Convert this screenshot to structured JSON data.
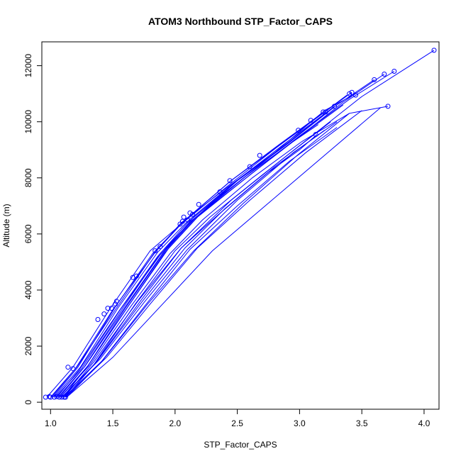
{
  "chart_data": {
    "type": "line",
    "title": "ATOM3 Northbound STP_Factor_CAPS",
    "xlabel": "STP_Factor_CAPS",
    "ylabel": "Altitude (m)",
    "xlim": [
      0.93,
      4.12
    ],
    "ylim": [
      -250,
      12850
    ],
    "xticks": [
      1.0,
      1.5,
      2.0,
      2.5,
      3.0,
      3.5,
      4.0
    ],
    "xtick_labels": [
      "1.0",
      "1.5",
      "2.0",
      "2.5",
      "3.0",
      "3.5",
      "4.0"
    ],
    "yticks": [
      0,
      2000,
      4000,
      6000,
      8000,
      10000,
      12000
    ],
    "ytick_labels": [
      "0",
      "2000",
      "4000",
      "6000",
      "8000",
      "10000",
      "12000"
    ],
    "grid": false,
    "color": "#0000ff",
    "series": [
      {
        "x": [
          1.0,
          1.2,
          1.5,
          1.85,
          2.05,
          2.4,
          2.8,
          3.2,
          3.45
        ],
        "y": [
          180,
          1200,
          3300,
          5400,
          6400,
          7600,
          8900,
          10400,
          11000
        ]
      },
      {
        "x": [
          1.02,
          1.22,
          1.52,
          1.82,
          2.08,
          2.45,
          2.85,
          3.25,
          3.42
        ],
        "y": [
          180,
          1250,
          3400,
          5300,
          6500,
          7900,
          9200,
          10500,
          11050
        ]
      },
      {
        "x": [
          0.97,
          1.18,
          1.48,
          1.8,
          2.05,
          2.42,
          2.82,
          3.2,
          3.38
        ],
        "y": [
          180,
          1250,
          3350,
          5400,
          6350,
          7700,
          9100,
          10350,
          10950
        ]
      },
      {
        "x": [
          1.05,
          1.23,
          1.55,
          1.86,
          2.1,
          2.5,
          2.9,
          3.3,
          3.6
        ],
        "y": [
          180,
          1150,
          3250,
          5200,
          6400,
          7900,
          9200,
          10600,
          11500
        ]
      },
      {
        "x": [
          1.07,
          1.28,
          1.6,
          1.9,
          2.15,
          2.55,
          2.95,
          3.35,
          3.68
        ],
        "y": [
          180,
          1300,
          3400,
          5300,
          6600,
          8000,
          9300,
          10700,
          11700
        ]
      },
      {
        "x": [
          1.1,
          1.3,
          1.62,
          1.92,
          2.18,
          2.6,
          3.0,
          3.4,
          3.76
        ],
        "y": [
          180,
          1300,
          3400,
          5350,
          6600,
          8100,
          9500,
          10800,
          11800
        ]
      },
      {
        "x": [
          1.12,
          1.35,
          1.68,
          2.0,
          2.28,
          2.7,
          3.1,
          3.5,
          4.08
        ],
        "y": [
          180,
          1350,
          3500,
          5400,
          6600,
          8100,
          9500,
          10900,
          12550
        ]
      },
      {
        "x": [
          1.08,
          1.32,
          1.65,
          1.96,
          2.22,
          2.62,
          3.02,
          3.4,
          3.71
        ],
        "y": [
          180,
          1350,
          3450,
          5300,
          6500,
          8000,
          9300,
          10300,
          10550
        ]
      },
      {
        "x": [
          1.1,
          1.36,
          1.72,
          2.05,
          2.35,
          2.75,
          3.0,
          3.14
        ],
        "y": [
          180,
          1400,
          3600,
          5500,
          6700,
          8200,
          9000,
          9550
        ]
      },
      {
        "x": [
          1.04,
          1.25,
          1.56,
          1.88,
          2.12,
          2.5,
          2.87,
          3.22
        ],
        "y": [
          180,
          1200,
          3300,
          5250,
          6400,
          7900,
          9100,
          10350
        ]
      },
      {
        "x": [
          1.06,
          1.27,
          1.58,
          1.88,
          2.14,
          2.55,
          2.92,
          3.28
        ],
        "y": [
          180,
          1250,
          3350,
          5300,
          6500,
          8000,
          9300,
          10550
        ]
      },
      {
        "x": [
          1.12,
          1.45,
          1.8,
          2.18,
          2.6,
          3.05,
          3.5
        ],
        "y": [
          180,
          1600,
          3500,
          5500,
          7200,
          8900,
          10400
        ]
      },
      {
        "x": [
          1.13,
          1.5,
          1.9,
          2.3,
          2.75,
          3.2,
          3.65
        ],
        "y": [
          180,
          1600,
          3500,
          5400,
          7100,
          8800,
          10500
        ]
      },
      {
        "x": [
          1.11,
          1.42,
          1.78,
          2.15,
          2.55,
          2.98,
          3.4
        ],
        "y": [
          180,
          1500,
          3500,
          5400,
          7100,
          8800,
          10300
        ]
      },
      {
        "x": [
          1.09,
          1.4,
          1.75,
          2.1,
          2.5,
          2.95,
          3.3
        ],
        "y": [
          180,
          1550,
          3550,
          5450,
          7200,
          8900,
          10000
        ]
      },
      {
        "x": [
          1.11,
          1.35,
          1.7,
          2.05,
          2.45,
          2.9,
          3.25
        ],
        "y": [
          180,
          1450,
          3600,
          5500,
          7200,
          8800,
          10000
        ]
      },
      {
        "x": [
          1.1,
          1.3,
          1.62,
          1.95,
          2.2,
          2.6,
          2.95,
          3.15
        ],
        "y": [
          180,
          1300,
          3400,
          5500,
          6700,
          8100,
          9300,
          9900
        ]
      },
      {
        "x": [
          1.03,
          1.24,
          1.54,
          1.86,
          2.1,
          2.48,
          2.86,
          3.22
        ],
        "y": [
          180,
          1250,
          3350,
          5350,
          6450,
          7850,
          9150,
          10350
        ]
      },
      {
        "x": [
          1.08,
          1.3,
          1.6,
          1.92,
          2.17,
          2.58,
          2.98,
          3.35
        ],
        "y": [
          180,
          1300,
          3350,
          5400,
          6600,
          8100,
          9400,
          10600
        ]
      },
      {
        "x": [
          1.12,
          1.38,
          1.72,
          2.08,
          2.4,
          2.8,
          3.2
        ],
        "y": [
          180,
          1500,
          3500,
          5500,
          6900,
          8400,
          9700
        ]
      },
      {
        "x": [
          1.01,
          1.21,
          1.52,
          1.83,
          2.07,
          2.45,
          2.84,
          3.18
        ],
        "y": [
          180,
          1250,
          3300,
          5300,
          6450,
          7900,
          9200,
          10300
        ]
      },
      {
        "x": [
          1.13,
          1.4,
          1.76,
          2.12,
          2.5,
          2.92,
          3.3
        ],
        "y": [
          180,
          1400,
          3450,
          5450,
          7000,
          8600,
          9800
        ]
      }
    ],
    "points": [
      {
        "x": 0.96,
        "y": 180
      },
      {
        "x": 0.99,
        "y": 200
      },
      {
        "x": 1.0,
        "y": 180
      },
      {
        "x": 1.03,
        "y": 180
      },
      {
        "x": 1.05,
        "y": 200
      },
      {
        "x": 1.07,
        "y": 180
      },
      {
        "x": 1.09,
        "y": 180
      },
      {
        "x": 1.11,
        "y": 180
      },
      {
        "x": 1.12,
        "y": 180
      },
      {
        "x": 1.14,
        "y": 1250
      },
      {
        "x": 1.18,
        "y": 1200
      },
      {
        "x": 1.38,
        "y": 2950
      },
      {
        "x": 1.43,
        "y": 3150
      },
      {
        "x": 1.46,
        "y": 3350
      },
      {
        "x": 1.49,
        "y": 3350
      },
      {
        "x": 1.52,
        "y": 3500
      },
      {
        "x": 1.53,
        "y": 3600
      },
      {
        "x": 1.66,
        "y": 4450
      },
      {
        "x": 1.69,
        "y": 4500
      },
      {
        "x": 1.84,
        "y": 5400
      },
      {
        "x": 1.88,
        "y": 5550
      },
      {
        "x": 2.04,
        "y": 6350
      },
      {
        "x": 2.06,
        "y": 6450
      },
      {
        "x": 2.07,
        "y": 6600
      },
      {
        "x": 2.1,
        "y": 6500
      },
      {
        "x": 2.12,
        "y": 6750
      },
      {
        "x": 2.14,
        "y": 6700
      },
      {
        "x": 2.19,
        "y": 7050
      },
      {
        "x": 2.36,
        "y": 7500
      },
      {
        "x": 2.44,
        "y": 7900
      },
      {
        "x": 2.6,
        "y": 8400
      },
      {
        "x": 2.68,
        "y": 8800
      },
      {
        "x": 2.99,
        "y": 9700
      },
      {
        "x": 3.09,
        "y": 10050
      },
      {
        "x": 3.13,
        "y": 9550
      },
      {
        "x": 3.19,
        "y": 10350
      },
      {
        "x": 3.21,
        "y": 10350
      },
      {
        "x": 3.28,
        "y": 10550
      },
      {
        "x": 3.4,
        "y": 11000
      },
      {
        "x": 3.42,
        "y": 11050
      },
      {
        "x": 3.45,
        "y": 10950
      },
      {
        "x": 3.6,
        "y": 11500
      },
      {
        "x": 3.68,
        "y": 11700
      },
      {
        "x": 3.71,
        "y": 10550
      },
      {
        "x": 3.76,
        "y": 11800
      },
      {
        "x": 4.08,
        "y": 12550
      }
    ]
  }
}
